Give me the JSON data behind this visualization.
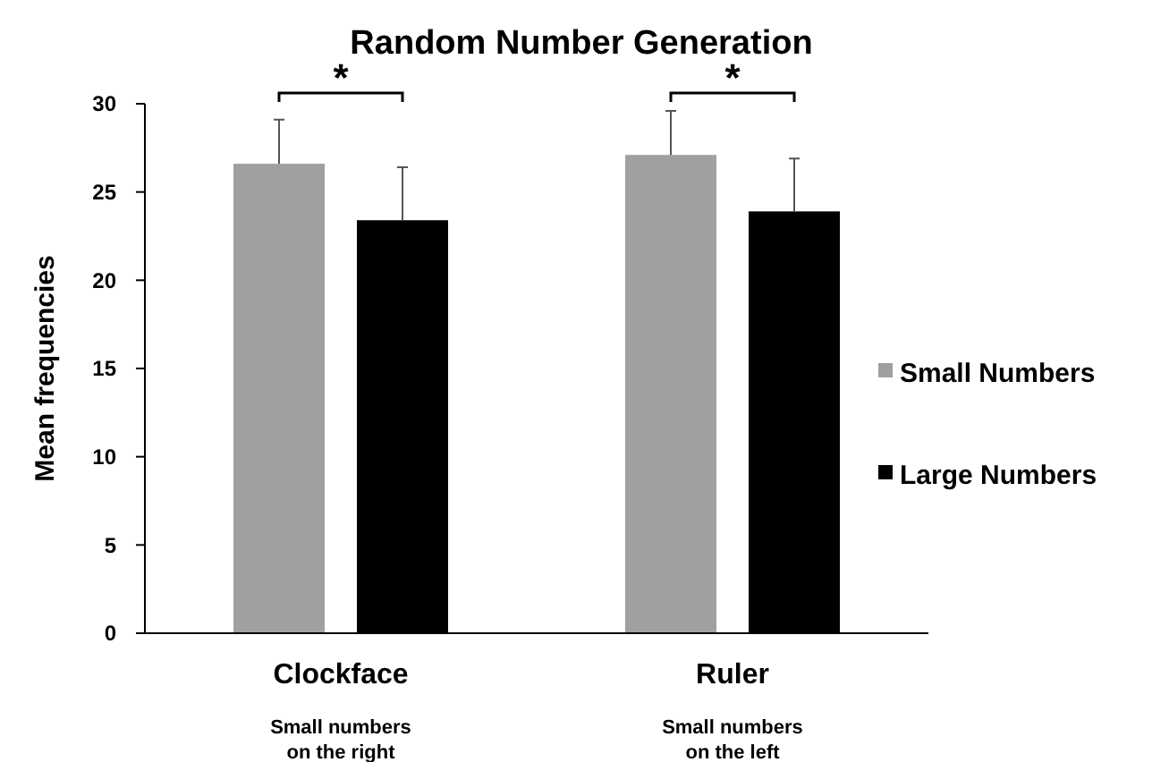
{
  "chart_data": {
    "type": "bar",
    "title": "Random Number Generation",
    "ylabel": "Mean frequencies",
    "categories": [
      "Clockface",
      "Ruler"
    ],
    "series": [
      {
        "name": "Small Numbers",
        "color": "#a0a0a0",
        "values": [
          26.6,
          27.1
        ],
        "errors": [
          [
            26.6,
            29.1
          ],
          [
            27.1,
            29.6
          ]
        ]
      },
      {
        "name": "Large Numbers",
        "color": "#000000",
        "values": [
          23.4,
          23.9
        ],
        "errors": [
          [
            23.4,
            26.4
          ],
          [
            23.9,
            26.9
          ]
        ]
      }
    ],
    "ylim": [
      0,
      30
    ],
    "yticks": [
      0,
      5,
      10,
      15,
      20,
      25,
      30
    ],
    "grid": false,
    "legend": "right",
    "annotations": [
      "*",
      "*",
      "Small numbers on the right",
      "Small numbers on the left"
    ]
  }
}
